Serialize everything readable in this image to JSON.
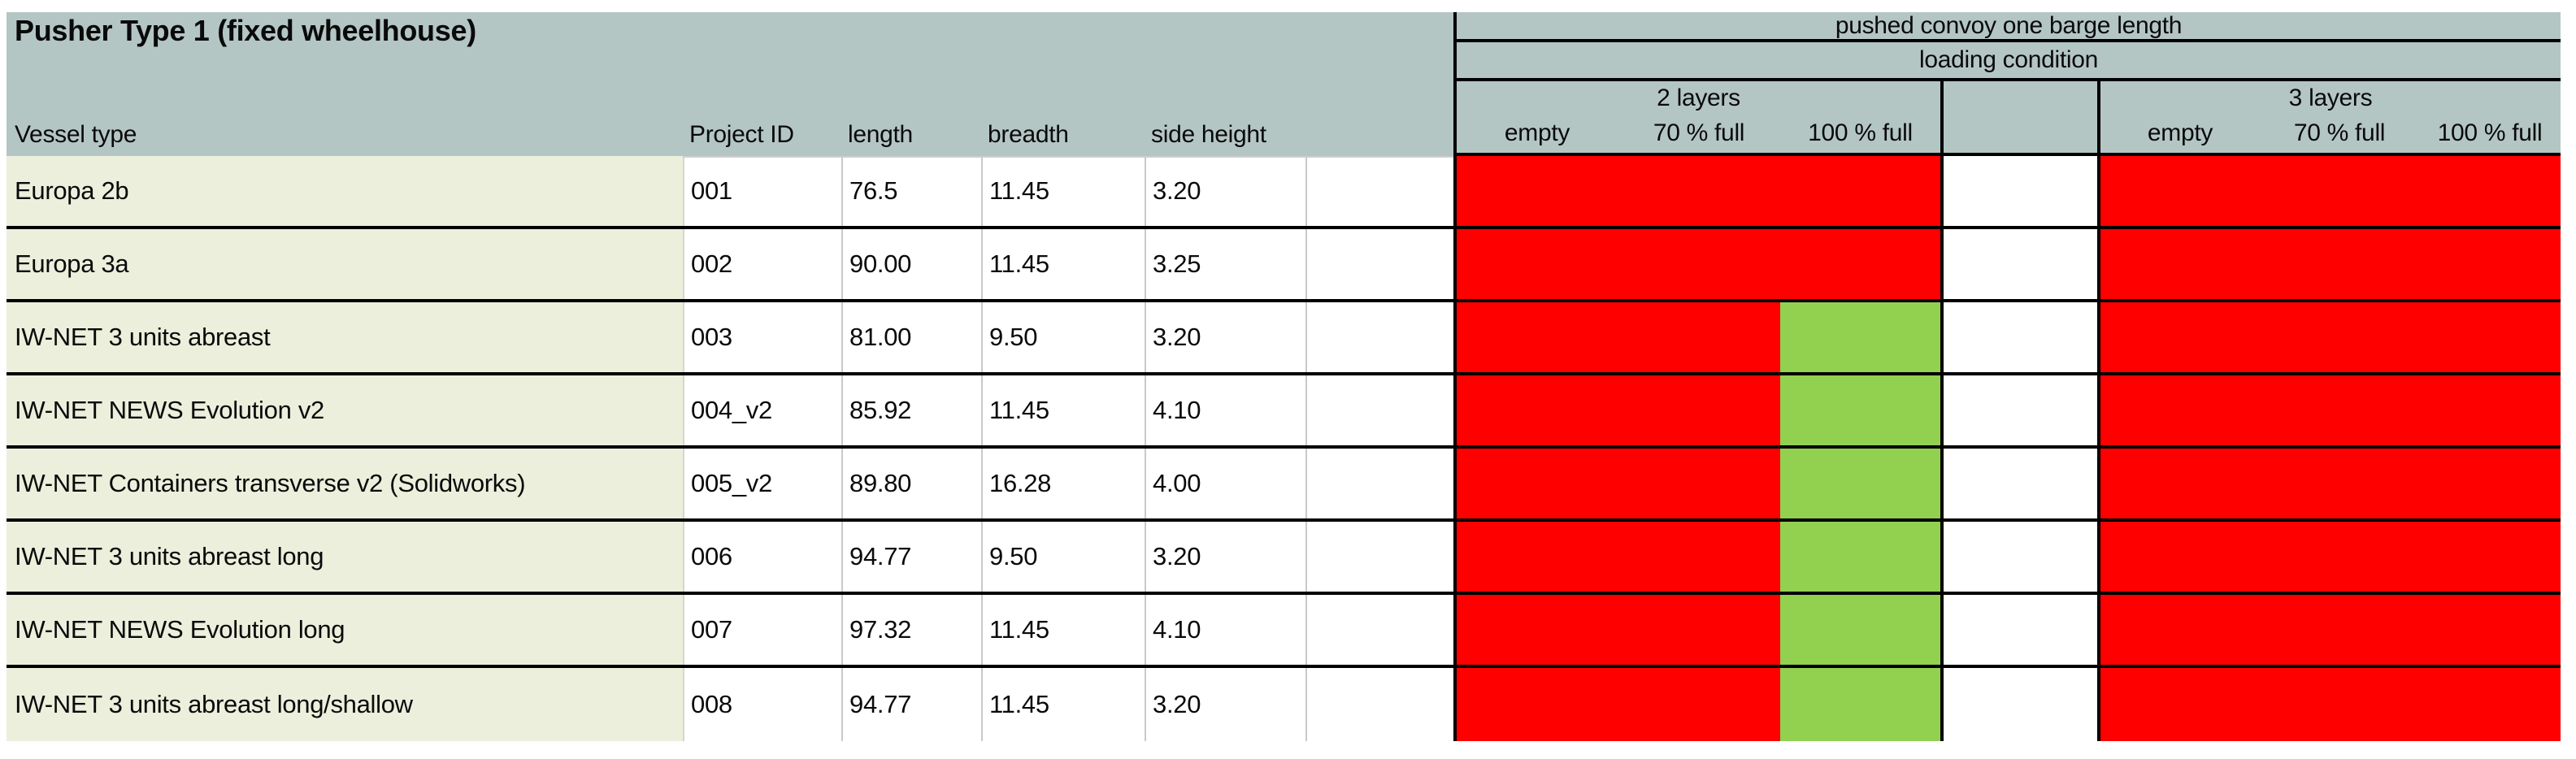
{
  "title": "Pusher Type 1 (fixed wheelhouse)",
  "columns": [
    "Vessel type",
    "Project ID",
    "length",
    "breadth",
    "side height"
  ],
  "header": {
    "convoy_title": "pushed convoy one barge length",
    "loading_title": "loading condition",
    "groups": [
      {
        "label": "2 layers",
        "subcolumns": [
          "empty",
          "70 % full",
          "100 % full"
        ]
      },
      {
        "label": "3 layers",
        "subcolumns": [
          "empty",
          "70 % full",
          "100 % full"
        ]
      }
    ]
  },
  "rows": [
    {
      "vessel": "Europa 2b",
      "project_id": "001",
      "length": "76.5",
      "breadth": "11.45",
      "side_height": "3.20",
      "layers2": [
        "red",
        "red",
        "red"
      ],
      "layers3": [
        "red",
        "red",
        "red"
      ]
    },
    {
      "vessel": "Europa 3a",
      "project_id": "002",
      "length": "90.00",
      "breadth": "11.45",
      "side_height": "3.25",
      "layers2": [
        "red",
        "red",
        "red"
      ],
      "layers3": [
        "red",
        "red",
        "red"
      ]
    },
    {
      "vessel": "IW-NET 3 units abreast",
      "project_id": "003",
      "length": "81.00",
      "breadth": "9.50",
      "side_height": "3.20",
      "layers2": [
        "red",
        "red",
        "green"
      ],
      "layers3": [
        "red",
        "red",
        "red"
      ]
    },
    {
      "vessel": "IW-NET NEWS Evolution v2",
      "project_id": "004_v2",
      "length": "85.92",
      "breadth": "11.45",
      "side_height": "4.10",
      "layers2": [
        "red",
        "red",
        "green"
      ],
      "layers3": [
        "red",
        "red",
        "red"
      ]
    },
    {
      "vessel": "IW-NET Containers transverse v2 (Solidworks)",
      "project_id": "005_v2",
      "length": "89.80",
      "breadth": "16.28",
      "side_height": "4.00",
      "layers2": [
        "red",
        "red",
        "green"
      ],
      "layers3": [
        "red",
        "red",
        "red"
      ]
    },
    {
      "vessel": "IW-NET 3 units abreast long",
      "project_id": "006",
      "length": "94.77",
      "breadth": "9.50",
      "side_height": "3.20",
      "layers2": [
        "red",
        "red",
        "green"
      ],
      "layers3": [
        "red",
        "red",
        "red"
      ]
    },
    {
      "vessel": "IW-NET NEWS Evolution long",
      "project_id": "007",
      "length": "97.32",
      "breadth": "11.45",
      "side_height": "4.10",
      "layers2": [
        "red",
        "red",
        "green"
      ],
      "layers3": [
        "red",
        "red",
        "red"
      ]
    },
    {
      "vessel": "IW-NET 3 units abreast long/shallow",
      "project_id": "008",
      "length": "94.77",
      "breadth": "11.45",
      "side_height": "3.20",
      "layers2": [
        "red",
        "red",
        "green"
      ],
      "layers3": [
        "red",
        "red",
        "red"
      ]
    }
  ],
  "status_colors": {
    "red": "#FF0000",
    "green": "#92D050"
  },
  "theme": {
    "header_bg": "#B4C6C4",
    "vessel_col_bg": "#EBEFDC",
    "grid_black": "#000000",
    "gridline_gray": "#C9C9C9",
    "page_bg": "#FFFFFF",
    "text": "#0A0A0A"
  }
}
